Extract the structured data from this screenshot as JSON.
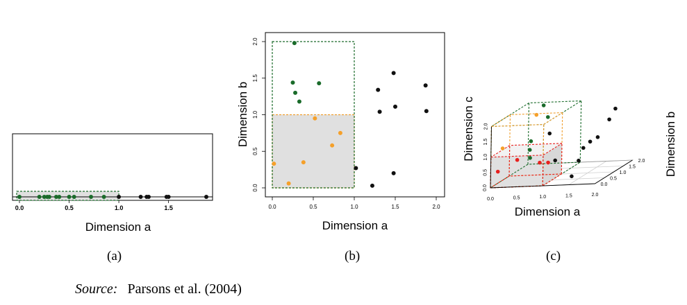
{
  "colors": {
    "inside": "#1a6b2a",
    "outside": "#111111",
    "b_lower": "#f5a02a",
    "c_lower": "#e8201e",
    "shade": "#e0e0e0",
    "box_a": "#1a6b2a",
    "box_b": "#f0a030",
    "box_c": "#e8201e"
  },
  "chart_data": [
    {
      "type": "scatter",
      "panel": "(a)",
      "xlabel": "Dimension a",
      "xlim": [
        0,
        2.0
      ],
      "xticks": [
        "0.0",
        "0.5",
        "1.0",
        "1.5"
      ],
      "region": {
        "xmin": 0,
        "xmax": 1.0,
        "shaded": true,
        "outline": "green-dashed"
      },
      "series": [
        {
          "color_key": "inside",
          "x": [
            0.0,
            0.2,
            0.25,
            0.28,
            0.3,
            0.37,
            0.4,
            0.5,
            0.55,
            0.72,
            0.85
          ]
        },
        {
          "color_key": "outside",
          "x": [
            1.0,
            1.22,
            1.28,
            1.3,
            1.48,
            1.5,
            1.88
          ]
        }
      ]
    },
    {
      "type": "scatter",
      "panel": "(b)",
      "xlabel": "Dimension a",
      "ylabel": "Dimension b",
      "xlim": [
        0,
        2.0
      ],
      "ylim": [
        0,
        2.0
      ],
      "xticks": [
        "0.0",
        "0.5",
        "1.0",
        "1.5",
        "2.0"
      ],
      "yticks": [
        "0.0",
        "0.5",
        "1.0",
        "1.5",
        "2.0"
      ],
      "regions": [
        {
          "xmin": 0,
          "xmax": 1.0,
          "ymin": 0,
          "ymax": 2.0,
          "outline": "green-dashed"
        },
        {
          "xmin": 0,
          "xmax": 1.0,
          "ymin": 0,
          "ymax": 1.0,
          "outline": "orange-dashed",
          "shaded": true
        }
      ],
      "series": [
        {
          "color_key": "inside",
          "points": [
            [
              0.27,
              1.98
            ],
            [
              0.25,
              1.44
            ],
            [
              0.28,
              1.3
            ],
            [
              0.33,
              1.18
            ],
            [
              0.57,
              1.43
            ]
          ]
        },
        {
          "color_key": "b_lower",
          "points": [
            [
              0.02,
              0.33
            ],
            [
              0.2,
              0.06
            ],
            [
              0.38,
              0.35
            ],
            [
              0.52,
              0.95
            ],
            [
              0.73,
              0.58
            ],
            [
              0.83,
              0.75
            ]
          ]
        },
        {
          "color_key": "outside",
          "points": [
            [
              1.02,
              0.27
            ],
            [
              1.22,
              0.03
            ],
            [
              1.29,
              1.34
            ],
            [
              1.31,
              1.04
            ],
            [
              1.48,
              1.57
            ],
            [
              1.48,
              0.2
            ],
            [
              1.5,
              1.11
            ],
            [
              1.87,
              1.4
            ],
            [
              1.88,
              1.05
            ]
          ]
        }
      ]
    },
    {
      "type": "scatter",
      "panel": "(c)",
      "projection": "3d",
      "xlabel": "Dimension a",
      "ylabel": "Dimension b",
      "zlabel": "Dimension c",
      "xlim": [
        0,
        2.0
      ],
      "ylim": [
        0,
        2.0
      ],
      "zlim": [
        0,
        2.0
      ],
      "xticks": [
        "0.0",
        "0.5",
        "1.0",
        "1.5",
        "2.0"
      ],
      "yticks": [
        "0.0",
        "0.5",
        "1.0",
        "1.5",
        "2.0"
      ],
      "zticks": [
        "0.0",
        "0.5",
        "1.0",
        "1.5",
        "2.0"
      ],
      "boxes": [
        {
          "a": [
            0,
            1.0
          ],
          "b": [
            0,
            2.0
          ],
          "c": [
            0,
            2.0
          ],
          "outline": "green-dashed"
        },
        {
          "a": [
            0,
            1.0
          ],
          "b": [
            0,
            1.0
          ],
          "c": [
            0,
            2.0
          ],
          "outline": "orange-dashed"
        },
        {
          "a": [
            0,
            1.0
          ],
          "b": [
            0,
            1.0
          ],
          "c": [
            0,
            1.0
          ],
          "outline": "red-dashed",
          "shaded": true
        }
      ],
      "series": [
        {
          "color_key": "inside",
          "points": [
            [
              0.3,
              1.95,
              1.92
            ],
            [
              0.57,
              1.43,
              1.72
            ],
            [
              0.25,
              1.44,
              0.95
            ],
            [
              0.28,
              1.3,
              0.72
            ],
            [
              0.33,
              1.18,
              0.5
            ]
          ]
        },
        {
          "color_key": "b_lower",
          "points": [
            [
              0.52,
              0.95,
              1.98
            ],
            [
              0.2,
              0.06,
              1.25
            ]
          ]
        },
        {
          "color_key": "c_lower",
          "points": [
            [
              0.02,
              0.33,
              0.4
            ],
            [
              0.38,
              0.35,
              0.75
            ],
            [
              0.73,
              0.58,
              0.55
            ],
            [
              0.83,
              0.75,
              0.48
            ]
          ]
        },
        {
          "color_key": "outside",
          "points": [
            [
              1.87,
              1.4,
              1.92
            ],
            [
              1.88,
              1.05,
              1.7
            ],
            [
              1.48,
              1.57,
              0.95
            ],
            [
              1.5,
              1.11,
              0.98
            ],
            [
              1.29,
              1.34,
              0.7
            ],
            [
              1.31,
              1.04,
              0.4
            ],
            [
              1.02,
              0.27,
              1.6
            ],
            [
              1.22,
              0.03,
              0.8
            ],
            [
              1.48,
              0.2,
              0.2
            ]
          ]
        }
      ]
    }
  ],
  "captions": [
    "(a)",
    "(b)",
    "(c)"
  ],
  "source": {
    "label": "Source:",
    "text": "Parsons et al. (2004)"
  }
}
